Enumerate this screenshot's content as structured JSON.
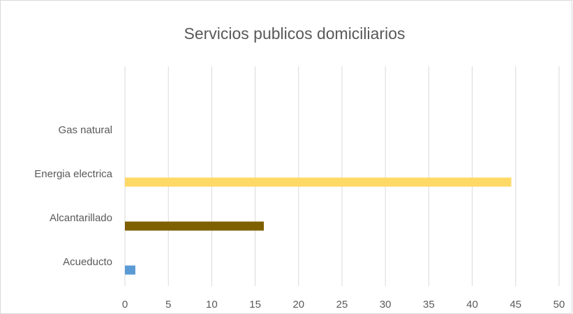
{
  "chart_data": {
    "type": "bar",
    "orientation": "horizontal",
    "title": "Servicios publicos domiciliarios",
    "categories": [
      "Acueducto",
      "Alcantarillado",
      "Energia electrica",
      "Gas natural"
    ],
    "values": [
      1.2,
      16,
      44.5,
      0
    ],
    "colors": [
      "#5b9bd5",
      "#7f6000",
      "#ffd966",
      null
    ],
    "xlim": [
      0,
      50
    ],
    "xticks": [
      0,
      5,
      10,
      15,
      20,
      25,
      30,
      35,
      40,
      45,
      50
    ],
    "grid": true
  }
}
